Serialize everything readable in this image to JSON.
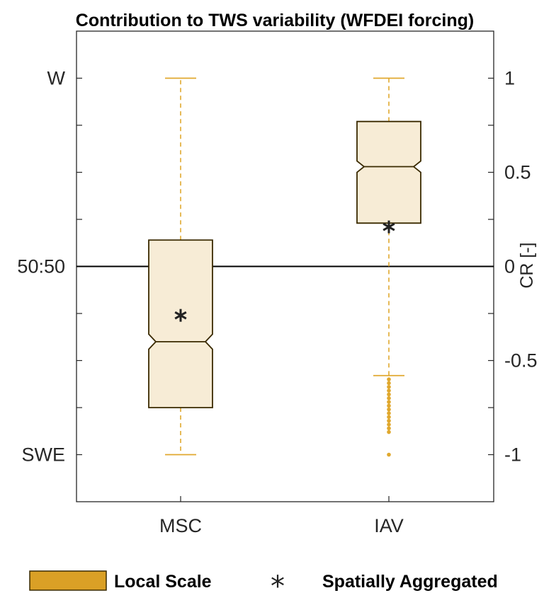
{
  "chart_data": {
    "type": "boxplot",
    "title": "Contribution to TWS variability (WFDEI forcing)",
    "categories": [
      "MSC",
      "IAV"
    ],
    "y_right": {
      "label": "CR [-]",
      "ticks": [
        1,
        0.5,
        0,
        -0.5,
        -1
      ],
      "tick_labels": [
        "1",
        "0.5",
        "0",
        "-0.5",
        "-1"
      ],
      "ylim": [
        -1.25,
        1.25
      ]
    },
    "y_left": {
      "tick_values": [
        1,
        0,
        -1
      ],
      "tick_labels": [
        "W",
        "50:50",
        "SWE"
      ]
    },
    "reference_line": 0,
    "boxes": [
      {
        "category": "MSC",
        "whisker_low": -1.0,
        "q1": -0.75,
        "median": -0.4,
        "q3": 0.14,
        "whisker_high": 1.0,
        "notch_low": -0.44,
        "notch_high": -0.36,
        "spatially_aggregated": -0.26,
        "outliers": []
      },
      {
        "category": "IAV",
        "whisker_low": -0.58,
        "q1": 0.23,
        "median": 0.53,
        "q3": 0.77,
        "whisker_high": 1.0,
        "notch_low": 0.5,
        "notch_high": 0.56,
        "spatially_aggregated": 0.21,
        "outliers": [
          -0.6,
          -0.62,
          -0.64,
          -0.66,
          -0.68,
          -0.7,
          -0.72,
          -0.74,
          -0.76,
          -0.78,
          -0.8,
          -0.82,
          -0.84,
          -0.86,
          -0.88,
          -1.0
        ]
      }
    ],
    "legend": {
      "placement": "bottom",
      "entries": [
        {
          "label": "Local Scale",
          "marker": "box"
        },
        {
          "label": "Spatially Aggregated",
          "marker": "asterisk"
        }
      ]
    },
    "colors": {
      "box_fill": "#f7ecd6",
      "box_edge": "#3a2a00",
      "whisker": "#e0a82e",
      "outlier": "#e0a82e",
      "legend_fill": "#daa026",
      "axis": "#262626",
      "zero_line": "#000000"
    }
  }
}
